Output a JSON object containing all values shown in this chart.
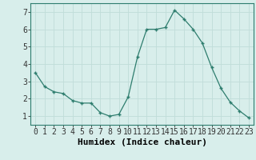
{
  "x": [
    0,
    1,
    2,
    3,
    4,
    5,
    6,
    7,
    8,
    9,
    10,
    11,
    12,
    13,
    14,
    15,
    16,
    17,
    18,
    19,
    20,
    21,
    22,
    23
  ],
  "y": [
    3.5,
    2.7,
    2.4,
    2.3,
    1.9,
    1.75,
    1.75,
    1.2,
    1.0,
    1.1,
    2.1,
    4.4,
    6.0,
    6.0,
    6.1,
    7.1,
    6.6,
    6.0,
    5.2,
    3.8,
    2.6,
    1.8,
    1.3,
    0.9
  ],
  "xlabel": "Humidex (Indice chaleur)",
  "line_color": "#2e7d6e",
  "marker": "+",
  "bg_color": "#d8eeeb",
  "grid_color": "#c0ddd8",
  "xlim": [
    -0.5,
    23.5
  ],
  "ylim": [
    0.5,
    7.5
  ],
  "xtick_labels": [
    "0",
    "1",
    "2",
    "3",
    "4",
    "5",
    "6",
    "7",
    "8",
    "9",
    "10",
    "11",
    "12",
    "13",
    "14",
    "15",
    "16",
    "17",
    "18",
    "19",
    "20",
    "21",
    "22",
    "23"
  ],
  "ytick_values": [
    1,
    2,
    3,
    4,
    5,
    6,
    7
  ],
  "xlabel_fontsize": 8,
  "tick_fontsize": 7
}
